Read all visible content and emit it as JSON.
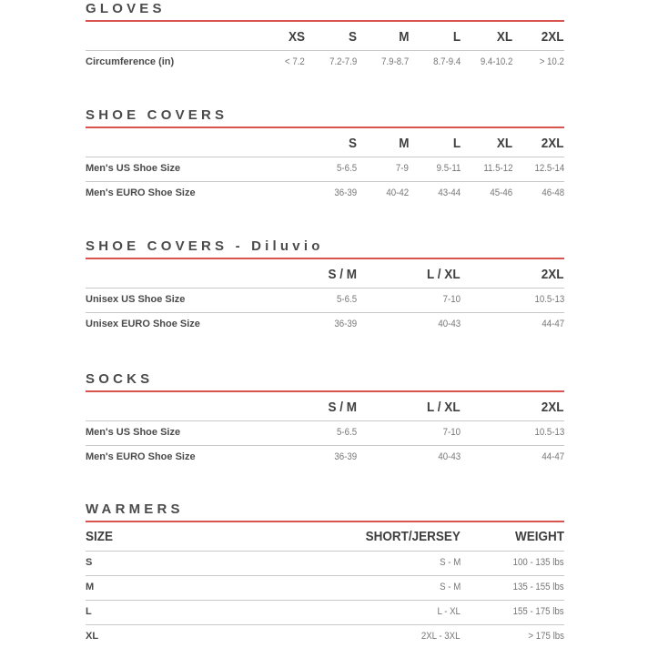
{
  "sections": [
    {
      "title": "GLOVES",
      "headers": [
        "XS",
        "S",
        "M",
        "L",
        "XL",
        "2XL"
      ],
      "rows": [
        {
          "label": "Circumference (in)",
          "values": [
            "< 7.2",
            "7.2-7.9",
            "7.9-8.7",
            "8.7-9.4",
            "9.4-10.2",
            "> 10.2"
          ]
        }
      ]
    },
    {
      "title": "SHOE COVERS",
      "headers": [
        "S",
        "M",
        "L",
        "XL",
        "2XL"
      ],
      "rows": [
        {
          "label": "Men's US Shoe Size",
          "values": [
            "5-6.5",
            "7-9",
            "9.5-11",
            "11.5-12",
            "12.5-14"
          ]
        },
        {
          "label": "Men's EURO Shoe Size",
          "values": [
            "36-39",
            "40-42",
            "43-44",
            "45-46",
            "46-48"
          ]
        }
      ]
    },
    {
      "title": "SHOE COVERS - Diluvio",
      "headers": [
        "S / M",
        "L / XL",
        "2XL"
      ],
      "rows": [
        {
          "label": "Unisex US Shoe Size",
          "values": [
            "5-6.5",
            "7-10",
            "10.5-13"
          ]
        },
        {
          "label": "Unisex EURO Shoe Size",
          "values": [
            "36-39",
            "40-43",
            "44-47"
          ]
        }
      ]
    },
    {
      "title": "SOCKS",
      "headers": [
        "S / M",
        "L / XL",
        "2XL"
      ],
      "rows": [
        {
          "label": "Men's US Shoe Size",
          "values": [
            "5-6.5",
            "7-10",
            "10.5-13"
          ]
        },
        {
          "label": "Men's EURO Shoe Size",
          "values": [
            "36-39",
            "40-43",
            "44-47"
          ]
        }
      ]
    },
    {
      "title": "WARMERS",
      "row_header": "SIZE",
      "headers": [
        "SHORT/JERSEY",
        "WEIGHT"
      ],
      "rows": [
        {
          "label": "S",
          "values": [
            "S - M",
            "100 - 135 lbs"
          ]
        },
        {
          "label": "M",
          "values": [
            "S - M",
            "135 - 155 lbs"
          ]
        },
        {
          "label": "L",
          "values": [
            "L - XL",
            "155 - 175 lbs"
          ]
        },
        {
          "label": "XL",
          "values": [
            "2XL - 3XL",
            "> 175 lbs"
          ]
        }
      ]
    }
  ],
  "colors": {
    "accent_rule": "#d9534f",
    "divider": "#c8c8c8",
    "text": "#4a4a4a"
  }
}
